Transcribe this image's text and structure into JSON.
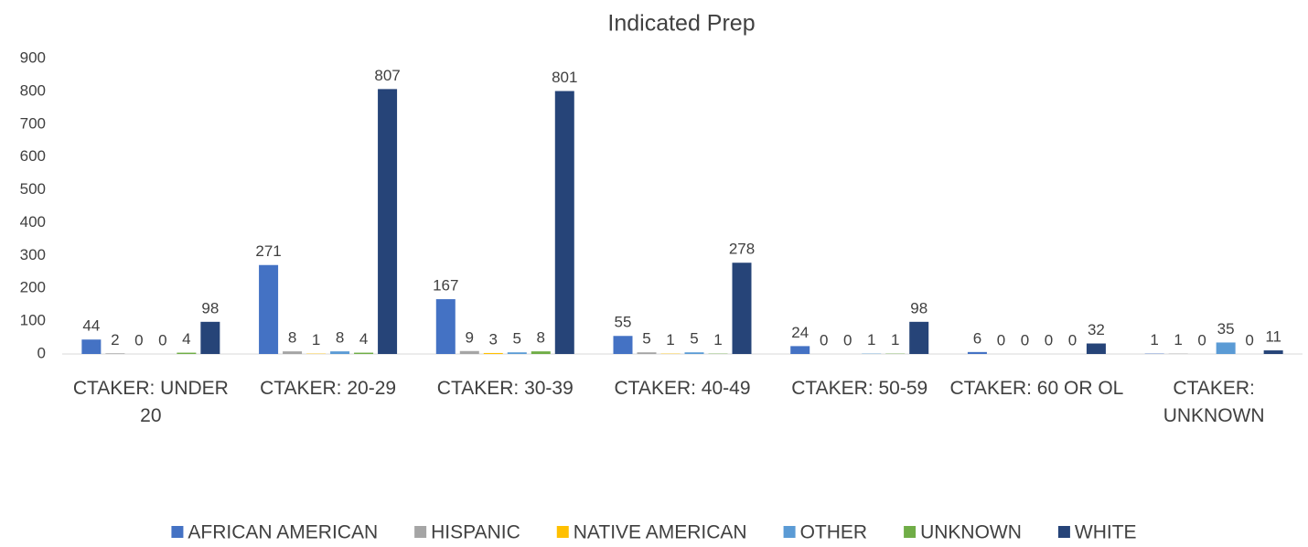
{
  "chart_data": {
    "type": "bar",
    "title": "Indicated Prep",
    "categories": [
      "CTAKER: UNDER 20",
      "CTAKER: 20-29",
      "CTAKER: 30-39",
      "CTAKER: 40-49",
      "CTAKER: 50-59",
      "CTAKER: 60 OR OL",
      "CTAKER: UNKNOWN"
    ],
    "series": [
      {
        "name": "AFRICAN AMERICAN",
        "color": "#4472c4",
        "values": [
          44,
          271,
          167,
          55,
          24,
          6,
          1
        ]
      },
      {
        "name": "HISPANIC",
        "color": "#a5a5a5",
        "values": [
          2,
          8,
          9,
          5,
          0,
          0,
          1
        ]
      },
      {
        "name": "NATIVE AMERICAN",
        "color": "#ffc000",
        "values": [
          0,
          1,
          3,
          1,
          0,
          0,
          0
        ]
      },
      {
        "name": "OTHER",
        "color": "#5b9bd5",
        "values": [
          0,
          8,
          5,
          5,
          1,
          0,
          35
        ]
      },
      {
        "name": "UNKNOWN",
        "color": "#70ad47",
        "values": [
          4,
          4,
          8,
          1,
          1,
          0,
          0
        ]
      },
      {
        "name": "WHITE",
        "color": "#264478",
        "values": [
          98,
          807,
          801,
          278,
          98,
          32,
          11
        ]
      }
    ],
    "ylim": [
      0,
      900
    ],
    "yticks": [
      0,
      100,
      200,
      300,
      400,
      500,
      600,
      700,
      800,
      900
    ],
    "grid": false,
    "legend": "bottom"
  }
}
